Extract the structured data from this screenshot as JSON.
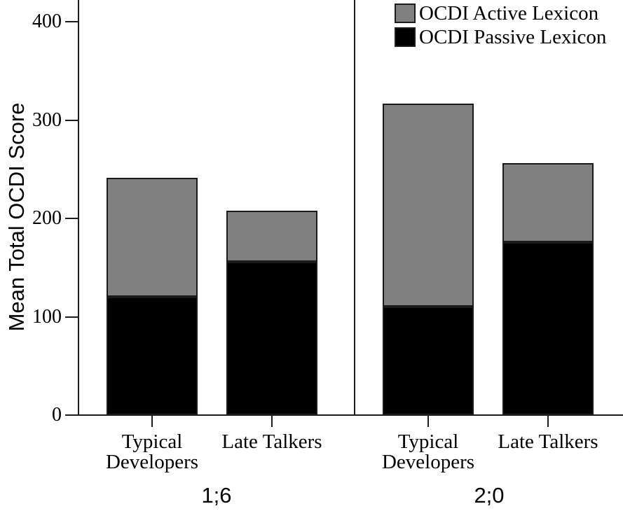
{
  "chart_data": {
    "type": "bar",
    "stacked": true,
    "title": "",
    "xlabel": "",
    "ylabel": "Mean Total OCDI Score",
    "ylim": [
      0,
      420
    ],
    "yticks": [
      0,
      100,
      200,
      300,
      400
    ],
    "grid": false,
    "legend_position": "top-right",
    "axis_color": "#1c1c1c",
    "legend": [
      {
        "key": "active",
        "label": "OCDI Active Lexicon",
        "color": "#808080"
      },
      {
        "key": "passive",
        "label": "OCDI Passive Lexicon",
        "color": "#000000"
      }
    ],
    "panels": [
      {
        "label": "1;6",
        "categories": [
          {
            "name": "Typical Developers",
            "lines": [
              "Typical",
              "Developers"
            ]
          },
          {
            "name": "Late Talkers",
            "lines": [
              "Late Talkers"
            ]
          }
        ],
        "series": [
          {
            "name": "OCDI Passive Lexicon",
            "color": "#000000",
            "values": [
              120,
              156
            ]
          },
          {
            "name": "OCDI Active Lexicon",
            "color": "#808080",
            "values": [
              121,
              52
            ]
          }
        ],
        "totals": [
          241,
          208
        ]
      },
      {
        "label": "2;0",
        "categories": [
          {
            "name": "Typical Developers",
            "lines": [
              "Typical",
              "Developers"
            ]
          },
          {
            "name": "Late Talkers",
            "lines": [
              "Late Talkers"
            ]
          }
        ],
        "series": [
          {
            "name": "OCDI Passive Lexicon",
            "color": "#000000",
            "values": [
              110,
              176
            ]
          },
          {
            "name": "OCDI Active Lexicon",
            "color": "#808080",
            "values": [
              207,
              80
            ]
          }
        ],
        "totals": [
          317,
          256
        ]
      }
    ]
  }
}
